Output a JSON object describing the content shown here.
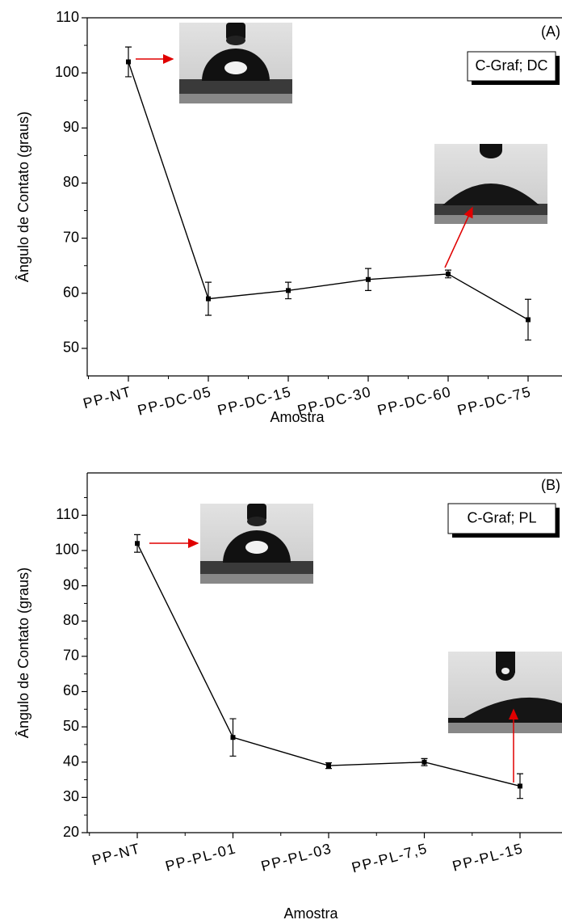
{
  "chart_data": [
    {
      "type": "line",
      "panel_label": "(A)",
      "annotation": "C-Graf; DC",
      "x_label": "Amostra",
      "y_label": "Ângulo de Contato (graus)",
      "categories": [
        "PP-NT",
        "PP-DC-05",
        "PP-DC-15",
        "PP-DC-30",
        "PP-DC-60",
        "PP-DC-75"
      ],
      "values": [
        102,
        59,
        60.5,
        62.5,
        63.5,
        55.2
      ],
      "errors": [
        2.7,
        3,
        1.5,
        2,
        0.7,
        3.7
      ],
      "color": "#000000",
      "ylim": [
        45,
        110
      ],
      "yticks": [
        50,
        60,
        70,
        80,
        90,
        100,
        110
      ]
    },
    {
      "type": "line",
      "panel_label": "(B)",
      "annotation": "C-Graf; PL",
      "x_label": "Amostra",
      "y_label": "Ângulo de Contato (graus)",
      "categories": [
        "PP-NT",
        "PP-PL-01",
        "PP-PL-03",
        "PP-PL-7,5",
        "PP-PL-15"
      ],
      "values": [
        102,
        47,
        39,
        40,
        33.2
      ],
      "errors": [
        2.5,
        5.3,
        0.8,
        1,
        3.5
      ],
      "color": "#000000",
      "ylim": [
        20,
        122
      ],
      "yticks": [
        20,
        30,
        40,
        50,
        60,
        70,
        80,
        90,
        100,
        110
      ]
    }
  ]
}
